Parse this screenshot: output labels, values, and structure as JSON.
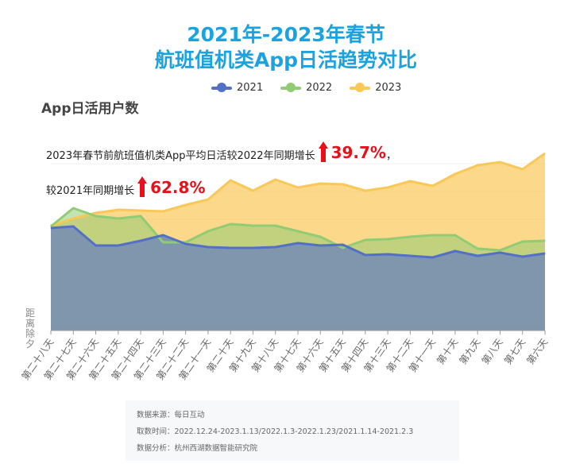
{
  "title_line1": "2021年-2023年春节",
  "title_line2": "航班值机类App日活趋势对比",
  "subtitle": "App日活用户数",
  "annotation": {
    "line1": "2023年春节前航班值机类App平均日活较2022年同期增长",
    "pct1": "39.7%",
    "comma": "，",
    "line2": "较2021年同期增长",
    "pct2": "62.8%"
  },
  "footer": {
    "source": "数据来源：每日互动",
    "period": "取数时间：2022.12.24-2023.1.13/2022.1.3-2022.1.23/2021.1.14-2021.2.3",
    "analysis": "数据分析：杭州西湖数据智能研究院"
  },
  "chart_data": {
    "type": "area",
    "ylabel": "距离除夕",
    "legend_position": "top",
    "grid": true,
    "categories": [
      "第二十八天",
      "第二十七天",
      "第二十六天",
      "第二十五天",
      "第二十四天",
      "第二十三天",
      "第二十二天",
      "第二十一天",
      "第二十天",
      "第十九天",
      "第十八天",
      "第十七天",
      "第十六天",
      "第十五天",
      "第十四天",
      "第十三天",
      "第十二天",
      "第十一天",
      "第十天",
      "第九天",
      "第八天",
      "第七天",
      "第六天"
    ],
    "ylim": [
      0,
      240
    ],
    "series": [
      {
        "name": "2021",
        "color": "#5470c6",
        "values": [
          129,
          131,
          107,
          107,
          113,
          120,
          109,
          105,
          104,
          104,
          105,
          110,
          107,
          108,
          95,
          96,
          94,
          92,
          100,
          94,
          98,
          93,
          97
        ]
      },
      {
        "name": "2022",
        "color": "#91cc75",
        "values": [
          131,
          154,
          144,
          141,
          144,
          111,
          111,
          125,
          134,
          132,
          132,
          125,
          118,
          104,
          114,
          115,
          118,
          120,
          120,
          103,
          101,
          112,
          113
        ]
      },
      {
        "name": "2023",
        "color": "#fac858",
        "values": [
          132,
          141,
          148,
          152,
          151,
          150,
          158,
          165,
          189,
          176,
          190,
          180,
          185,
          184,
          176,
          180,
          188,
          182,
          197,
          208,
          212,
          203,
          223
        ]
      }
    ]
  }
}
